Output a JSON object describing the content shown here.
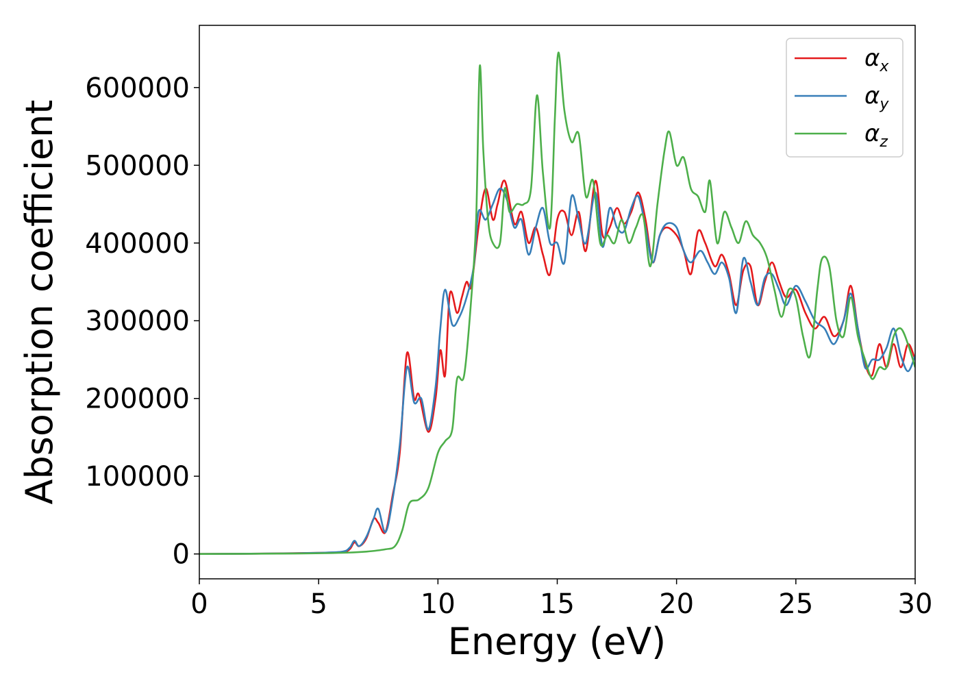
{
  "chart_data": {
    "type": "line",
    "xlabel": "Energy (eV)",
    "ylabel": "Absorption coefficient",
    "xlim": [
      0,
      30
    ],
    "ylim": [
      -32000,
      680000
    ],
    "xticks": [
      0,
      5,
      10,
      15,
      20,
      25,
      30
    ],
    "xtick_labels": [
      "0",
      "5",
      "10",
      "15",
      "20",
      "25",
      "30"
    ],
    "yticks": [
      0,
      100000,
      200000,
      300000,
      400000,
      500000,
      600000
    ],
    "ytick_labels": [
      "0",
      "100000",
      "200000",
      "300000",
      "400000",
      "500000",
      "600000"
    ],
    "grid": false,
    "legend_position": "top-right",
    "series": [
      {
        "name": "α",
        "subscript": "x",
        "color": "#e41a1c",
        "points": [
          [
            0,
            0
          ],
          [
            3,
            500
          ],
          [
            5,
            1500
          ],
          [
            6,
            2500
          ],
          [
            6.3,
            6000
          ],
          [
            6.5,
            15000
          ],
          [
            6.7,
            10000
          ],
          [
            7,
            20000
          ],
          [
            7.3,
            45000
          ],
          [
            7.5,
            40000
          ],
          [
            7.8,
            28000
          ],
          [
            8.1,
            75000
          ],
          [
            8.4,
            130000
          ],
          [
            8.7,
            258000
          ],
          [
            9.0,
            200000
          ],
          [
            9.2,
            205000
          ],
          [
            9.6,
            157000
          ],
          [
            9.9,
            200000
          ],
          [
            10.1,
            262000
          ],
          [
            10.3,
            230000
          ],
          [
            10.5,
            335000
          ],
          [
            10.8,
            310000
          ],
          [
            11.0,
            330000
          ],
          [
            11.2,
            350000
          ],
          [
            11.4,
            345000
          ],
          [
            11.7,
            420000
          ],
          [
            12.0,
            470000
          ],
          [
            12.3,
            430000
          ],
          [
            12.5,
            450000
          ],
          [
            12.8,
            480000
          ],
          [
            13.2,
            425000
          ],
          [
            13.5,
            440000
          ],
          [
            13.8,
            400000
          ],
          [
            14.1,
            420000
          ],
          [
            14.4,
            385000
          ],
          [
            14.7,
            360000
          ],
          [
            15.0,
            430000
          ],
          [
            15.3,
            440000
          ],
          [
            15.6,
            410000
          ],
          [
            15.9,
            440000
          ],
          [
            16.2,
            390000
          ],
          [
            16.6,
            480000
          ],
          [
            16.9,
            410000
          ],
          [
            17.2,
            420000
          ],
          [
            17.5,
            445000
          ],
          [
            17.8,
            425000
          ],
          [
            18.1,
            440000
          ],
          [
            18.4,
            465000
          ],
          [
            18.7,
            430000
          ],
          [
            19.0,
            375000
          ],
          [
            19.3,
            410000
          ],
          [
            19.6,
            420000
          ],
          [
            20.0,
            410000
          ],
          [
            20.3,
            390000
          ],
          [
            20.6,
            360000
          ],
          [
            20.9,
            415000
          ],
          [
            21.2,
            400000
          ],
          [
            21.6,
            370000
          ],
          [
            21.9,
            385000
          ],
          [
            22.2,
            360000
          ],
          [
            22.5,
            320000
          ],
          [
            22.8,
            365000
          ],
          [
            23.1,
            370000
          ],
          [
            23.4,
            320000
          ],
          [
            23.7,
            350000
          ],
          [
            24.0,
            375000
          ],
          [
            24.3,
            350000
          ],
          [
            24.6,
            330000
          ],
          [
            25.0,
            340000
          ],
          [
            25.4,
            310000
          ],
          [
            25.8,
            290000
          ],
          [
            26.2,
            305000
          ],
          [
            26.6,
            280000
          ],
          [
            27.0,
            300000
          ],
          [
            27.3,
            345000
          ],
          [
            27.6,
            290000
          ],
          [
            27.9,
            245000
          ],
          [
            28.2,
            230000
          ],
          [
            28.5,
            270000
          ],
          [
            28.8,
            240000
          ],
          [
            29.1,
            270000
          ],
          [
            29.4,
            240000
          ],
          [
            29.7,
            270000
          ],
          [
            30.0,
            250000
          ]
        ]
      },
      {
        "name": "α",
        "subscript": "y",
        "color": "#377eb8",
        "points": [
          [
            0,
            0
          ],
          [
            3,
            500
          ],
          [
            5,
            1500
          ],
          [
            6,
            3000
          ],
          [
            6.3,
            8000
          ],
          [
            6.5,
            17000
          ],
          [
            6.7,
            10000
          ],
          [
            7,
            22000
          ],
          [
            7.3,
            45000
          ],
          [
            7.5,
            58000
          ],
          [
            7.8,
            28000
          ],
          [
            8.1,
            70000
          ],
          [
            8.4,
            140000
          ],
          [
            8.7,
            240000
          ],
          [
            9.0,
            195000
          ],
          [
            9.3,
            200000
          ],
          [
            9.6,
            160000
          ],
          [
            9.9,
            215000
          ],
          [
            10.1,
            290000
          ],
          [
            10.3,
            340000
          ],
          [
            10.6,
            295000
          ],
          [
            10.9,
            305000
          ],
          [
            11.2,
            330000
          ],
          [
            11.5,
            370000
          ],
          [
            11.7,
            440000
          ],
          [
            12.0,
            430000
          ],
          [
            12.3,
            450000
          ],
          [
            12.6,
            470000
          ],
          [
            12.9,
            455000
          ],
          [
            13.2,
            420000
          ],
          [
            13.5,
            430000
          ],
          [
            13.8,
            385000
          ],
          [
            14.1,
            420000
          ],
          [
            14.4,
            445000
          ],
          [
            14.7,
            400000
          ],
          [
            15.0,
            400000
          ],
          [
            15.3,
            375000
          ],
          [
            15.6,
            460000
          ],
          [
            15.9,
            430000
          ],
          [
            16.2,
            400000
          ],
          [
            16.6,
            465000
          ],
          [
            16.9,
            395000
          ],
          [
            17.2,
            445000
          ],
          [
            17.5,
            420000
          ],
          [
            17.8,
            415000
          ],
          [
            18.1,
            445000
          ],
          [
            18.4,
            460000
          ],
          [
            18.7,
            420000
          ],
          [
            19.0,
            375000
          ],
          [
            19.3,
            410000
          ],
          [
            19.6,
            425000
          ],
          [
            20.0,
            420000
          ],
          [
            20.3,
            390000
          ],
          [
            20.6,
            375000
          ],
          [
            21.0,
            390000
          ],
          [
            21.3,
            375000
          ],
          [
            21.6,
            360000
          ],
          [
            21.9,
            375000
          ],
          [
            22.2,
            355000
          ],
          [
            22.5,
            310000
          ],
          [
            22.8,
            380000
          ],
          [
            23.1,
            350000
          ],
          [
            23.4,
            320000
          ],
          [
            23.7,
            355000
          ],
          [
            24.0,
            360000
          ],
          [
            24.3,
            340000
          ],
          [
            24.6,
            320000
          ],
          [
            25.0,
            345000
          ],
          [
            25.4,
            325000
          ],
          [
            25.8,
            300000
          ],
          [
            26.2,
            290000
          ],
          [
            26.6,
            270000
          ],
          [
            27.0,
            300000
          ],
          [
            27.3,
            335000
          ],
          [
            27.6,
            290000
          ],
          [
            27.9,
            240000
          ],
          [
            28.2,
            250000
          ],
          [
            28.5,
            250000
          ],
          [
            28.8,
            265000
          ],
          [
            29.1,
            290000
          ],
          [
            29.4,
            255000
          ],
          [
            29.7,
            235000
          ],
          [
            30.0,
            255000
          ]
        ]
      },
      {
        "name": "α",
        "subscript": "z",
        "color": "#4daf4a",
        "points": [
          [
            0,
            0
          ],
          [
            4,
            500
          ],
          [
            6,
            1500
          ],
          [
            7,
            3000
          ],
          [
            7.8,
            6000
          ],
          [
            8.2,
            10000
          ],
          [
            8.5,
            30000
          ],
          [
            8.8,
            65000
          ],
          [
            9.2,
            70000
          ],
          [
            9.6,
            85000
          ],
          [
            10.0,
            130000
          ],
          [
            10.3,
            145000
          ],
          [
            10.6,
            160000
          ],
          [
            10.8,
            225000
          ],
          [
            11.1,
            230000
          ],
          [
            11.4,
            330000
          ],
          [
            11.6,
            430000
          ],
          [
            11.75,
            627000
          ],
          [
            11.9,
            520000
          ],
          [
            12.1,
            430000
          ],
          [
            12.3,
            400000
          ],
          [
            12.6,
            400000
          ],
          [
            12.8,
            470000
          ],
          [
            13.0,
            440000
          ],
          [
            13.3,
            450000
          ],
          [
            13.6,
            450000
          ],
          [
            13.9,
            470000
          ],
          [
            14.15,
            590000
          ],
          [
            14.4,
            490000
          ],
          [
            14.7,
            420000
          ],
          [
            14.9,
            560000
          ],
          [
            15.05,
            645000
          ],
          [
            15.3,
            570000
          ],
          [
            15.6,
            530000
          ],
          [
            15.9,
            540000
          ],
          [
            16.2,
            460000
          ],
          [
            16.5,
            480000
          ],
          [
            16.8,
            400000
          ],
          [
            17.1,
            410000
          ],
          [
            17.4,
            400000
          ],
          [
            17.7,
            430000
          ],
          [
            18.0,
            400000
          ],
          [
            18.3,
            420000
          ],
          [
            18.6,
            435000
          ],
          [
            18.9,
            370000
          ],
          [
            19.2,
            450000
          ],
          [
            19.5,
            520000
          ],
          [
            19.7,
            543000
          ],
          [
            20.0,
            500000
          ],
          [
            20.3,
            510000
          ],
          [
            20.6,
            470000
          ],
          [
            20.9,
            460000
          ],
          [
            21.2,
            440000
          ],
          [
            21.4,
            480000
          ],
          [
            21.7,
            400000
          ],
          [
            22.0,
            440000
          ],
          [
            22.3,
            420000
          ],
          [
            22.6,
            400000
          ],
          [
            22.9,
            428000
          ],
          [
            23.2,
            410000
          ],
          [
            23.5,
            400000
          ],
          [
            23.8,
            380000
          ],
          [
            24.1,
            340000
          ],
          [
            24.4,
            305000
          ],
          [
            24.7,
            340000
          ],
          [
            25.0,
            330000
          ],
          [
            25.3,
            280000
          ],
          [
            25.6,
            255000
          ],
          [
            25.9,
            340000
          ],
          [
            26.1,
            380000
          ],
          [
            26.4,
            370000
          ],
          [
            26.7,
            300000
          ],
          [
            27.0,
            280000
          ],
          [
            27.3,
            330000
          ],
          [
            27.6,
            280000
          ],
          [
            27.9,
            250000
          ],
          [
            28.2,
            225000
          ],
          [
            28.5,
            240000
          ],
          [
            28.8,
            240000
          ],
          [
            29.1,
            280000
          ],
          [
            29.4,
            290000
          ],
          [
            29.7,
            270000
          ],
          [
            30.0,
            240000
          ]
        ]
      }
    ]
  }
}
